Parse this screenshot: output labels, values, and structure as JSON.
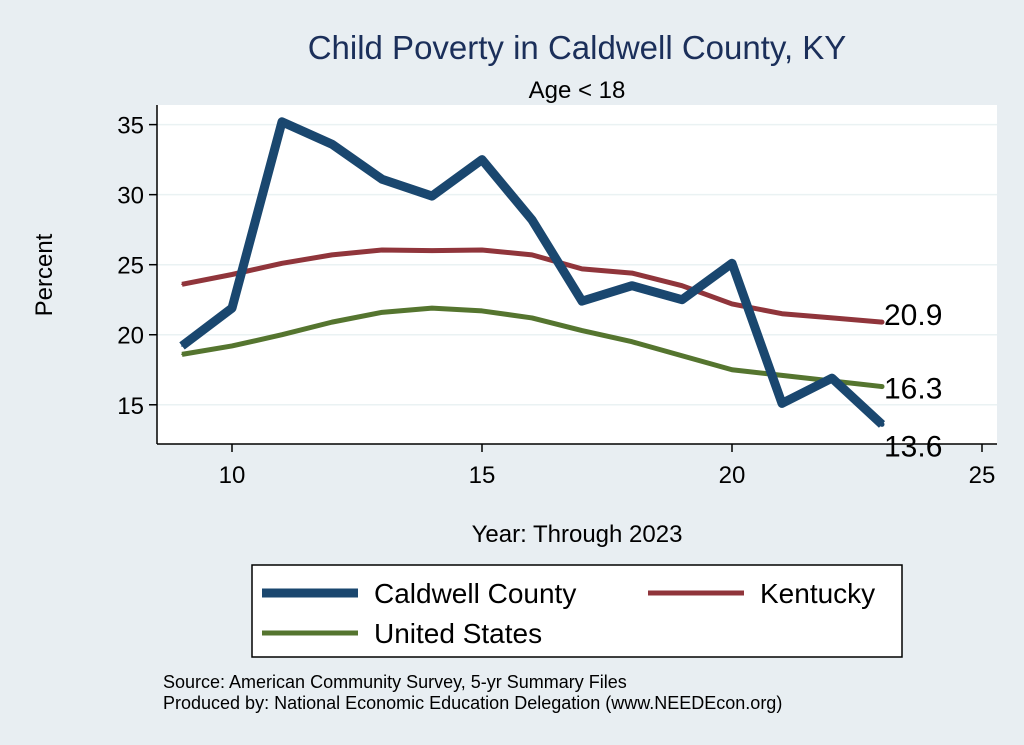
{
  "chart_data": {
    "type": "line",
    "title": "Child Poverty in Caldwell County, KY",
    "subtitle": "Age < 18",
    "xlabel": "Year: Through 2023",
    "ylabel": "Percent",
    "xlim": [
      8.5,
      25.3
    ],
    "ylim": [
      12.2,
      36.4
    ],
    "xticks": [
      10,
      15,
      20,
      25
    ],
    "yticks": [
      15,
      20,
      25,
      30,
      35
    ],
    "x": [
      9,
      10,
      11,
      12,
      13,
      14,
      15,
      16,
      17,
      18,
      19,
      20,
      21,
      22,
      23
    ],
    "series": [
      {
        "name": "Caldwell County",
        "color": "#1a476f",
        "values": [
          19.2,
          21.9,
          35.2,
          33.6,
          31.1,
          29.9,
          32.5,
          28.2,
          22.4,
          23.5,
          22.5,
          25.1,
          15.1,
          16.9,
          13.6
        ],
        "end_label": "13.6"
      },
      {
        "name": "Kentucky",
        "color": "#90353b",
        "values": [
          23.6,
          24.3,
          25.1,
          25.7,
          26.05,
          26.0,
          26.05,
          25.7,
          24.7,
          24.4,
          23.5,
          22.2,
          21.5,
          21.2,
          20.9
        ],
        "end_label": "20.9"
      },
      {
        "name": "United States",
        "color": "#55752f",
        "values": [
          18.6,
          19.2,
          20.0,
          20.9,
          21.6,
          21.9,
          21.7,
          21.2,
          20.3,
          19.5,
          18.5,
          17.5,
          17.1,
          16.7,
          16.3
        ],
        "end_label": "16.3"
      }
    ],
    "legend_position": "bottom"
  },
  "footer": {
    "source": "Source: American Community Survey, 5-yr Summary Files",
    "producer": "Produced by: National Economic Education Delegation (www.NEEDEcon.org)"
  }
}
